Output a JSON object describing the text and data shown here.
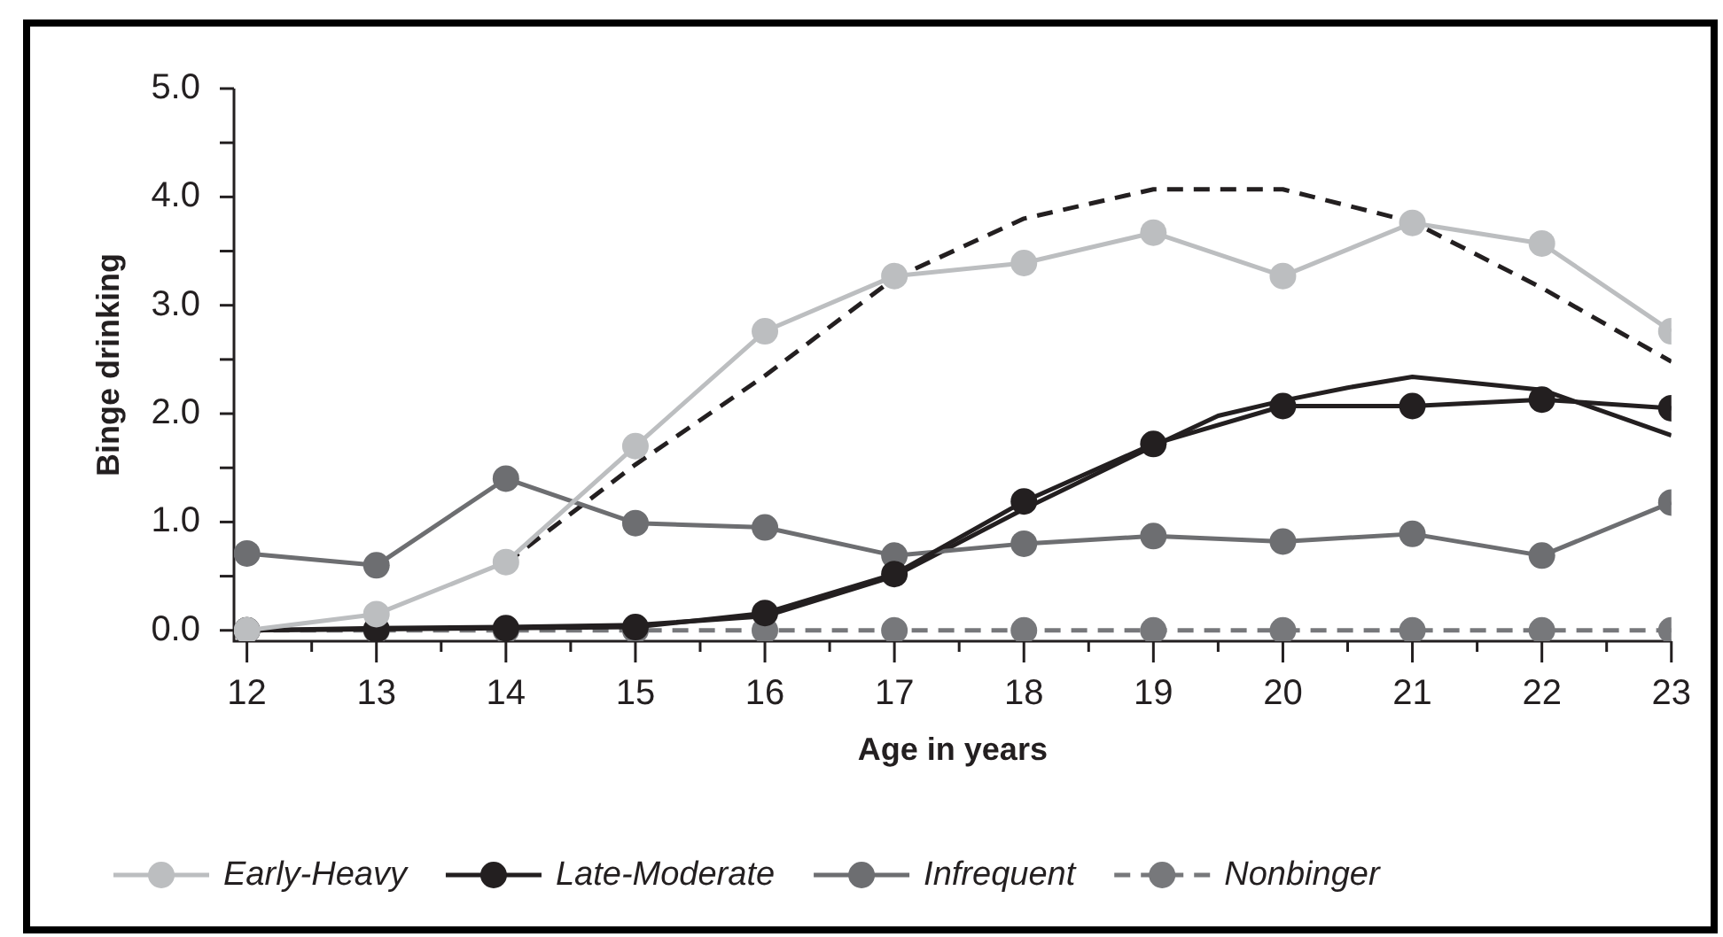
{
  "chart_data": {
    "type": "line",
    "xlabel": "Age in years",
    "ylabel": "Binge drinking",
    "x": [
      12,
      13,
      14,
      15,
      16,
      17,
      18,
      19,
      20,
      21,
      22,
      23
    ],
    "xlim": [
      11.9,
      23
    ],
    "xticks": [
      12,
      {
        "value": 12.5,
        "label": null
      },
      13,
      {
        "value": 13.5,
        "label": null
      },
      14,
      {
        "value": 14.5,
        "label": null
      },
      15,
      {
        "value": 15.5,
        "label": null
      },
      16,
      {
        "value": 16.5,
        "label": null
      },
      17,
      {
        "value": 17.5,
        "label": null
      },
      18,
      {
        "value": 18.5,
        "label": null
      },
      19,
      {
        "value": 19.5,
        "label": null
      },
      20,
      {
        "value": 20.5,
        "label": null
      },
      21,
      {
        "value": 21.5,
        "label": null
      },
      22,
      {
        "value": 22.5,
        "label": null
      },
      23
    ],
    "ylim": [
      -0.1,
      5
    ],
    "yticks": [
      {
        "value": 0,
        "label": "0.0"
      },
      {
        "value": 0.5,
        "label": null
      },
      {
        "value": 1,
        "label": "1.0"
      },
      {
        "value": 1.5,
        "label": null
      },
      {
        "value": 2,
        "label": "2.0"
      },
      {
        "value": 2.5,
        "label": null
      },
      {
        "value": 3,
        "label": "3.0"
      },
      {
        "value": 3.5,
        "label": null
      },
      {
        "value": 4,
        "label": "4.0"
      },
      {
        "value": 4.5,
        "label": null
      },
      {
        "value": 5,
        "label": "5.0"
      }
    ],
    "legend": "bottom",
    "marker": "circle",
    "line_style": "solid",
    "series": [
      {
        "name": "Early-Heavy",
        "color": "#bcbec0",
        "values": [
          0,
          0.15,
          0.63,
          1.7,
          2.76,
          3.27,
          3.39,
          3.67,
          3.27,
          3.76,
          3.57,
          2.76
        ]
      },
      {
        "name": "Late-Moderate",
        "color": "#231f20",
        "values": [
          0,
          0.01,
          0.02,
          0.03,
          0.16,
          0.52,
          1.19,
          1.72,
          2.07,
          2.07,
          2.13,
          2.05
        ]
      },
      {
        "name": "Infrequent",
        "color": "#6d6e71",
        "values": [
          0.71,
          0.6,
          1.4,
          0.99,
          0.95,
          0.69,
          0.8,
          0.87,
          0.82,
          0.89,
          0.69,
          1.18
        ]
      },
      {
        "name": "Nonbinger",
        "color": "#77787b",
        "line_style": "dashed",
        "values": [
          0,
          0,
          0,
          0,
          0,
          0,
          0,
          0,
          0,
          0,
          0,
          0
        ]
      },
      {
        "color": "#231f20",
        "line_style": "dashed",
        "marker": "none",
        "x": [
          14,
          15,
          16,
          17,
          18,
          19,
          20,
          21,
          22,
          23
        ],
        "values": [
          0.62,
          1.53,
          2.35,
          3.25,
          3.8,
          4.07,
          4.07,
          3.77,
          3.16,
          2.48
        ]
      },
      {
        "color": "#231f20",
        "marker": "none",
        "x": [
          12,
          13,
          14,
          15,
          16,
          17,
          18,
          19,
          19.5,
          20,
          20.5,
          21,
          22,
          23
        ],
        "values": [
          0,
          0.02,
          0.03,
          0.05,
          0.13,
          0.5,
          1.12,
          1.7,
          1.98,
          2.12,
          2.24,
          2.34,
          2.22,
          1.8
        ]
      }
    ]
  }
}
